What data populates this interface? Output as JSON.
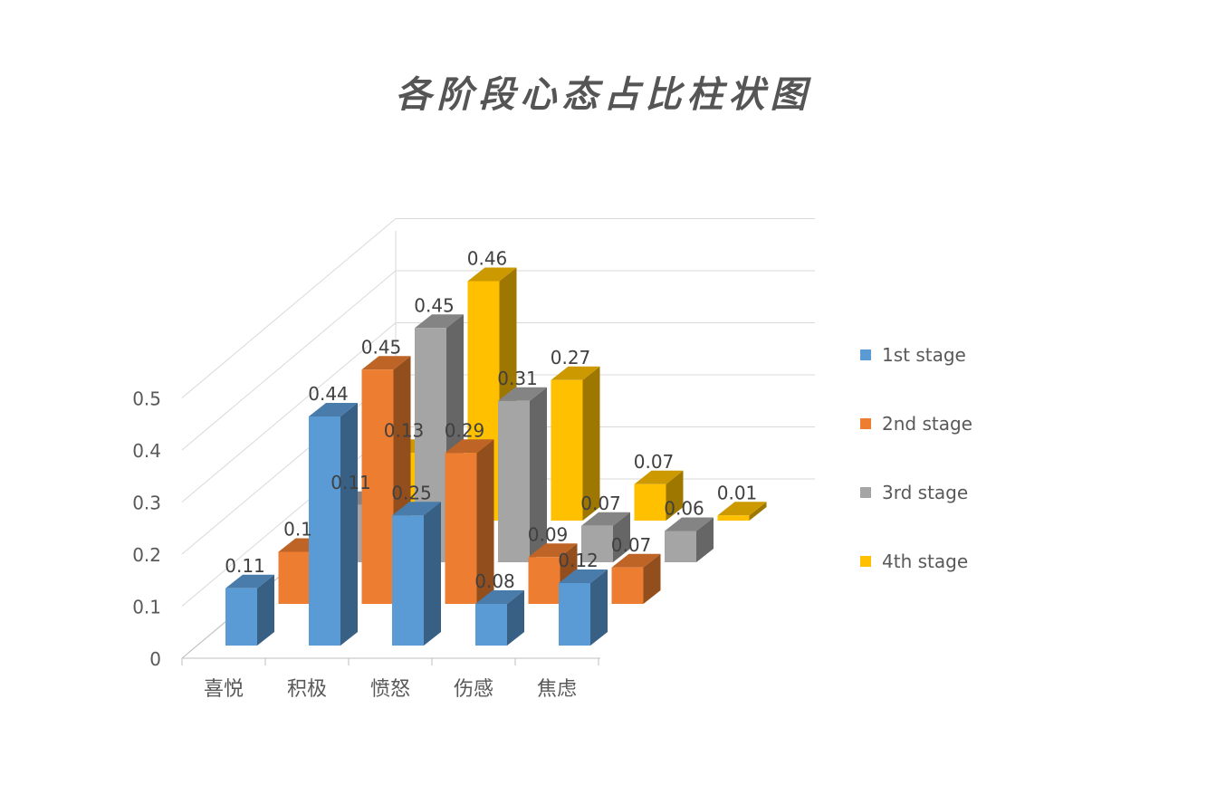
{
  "chart_data": {
    "type": "bar",
    "title": "各阶段心态占比柱状图",
    "categories": [
      "喜悦",
      "积极",
      "愤怒",
      "伤感",
      "焦虑"
    ],
    "series": [
      {
        "name": "1st stage",
        "color": "#5B9BD5",
        "values": [
          0.11,
          0.44,
          0.25,
          0.08,
          0.12
        ]
      },
      {
        "name": "2nd stage",
        "color": "#ED7D31",
        "values": [
          0.1,
          0.45,
          0.29,
          0.09,
          0.07
        ]
      },
      {
        "name": "3rd stage",
        "color": "#A5A5A5",
        "values": [
          0.11,
          0.45,
          0.31,
          0.07,
          0.06
        ]
      },
      {
        "name": "4th stage",
        "color": "#FFC000",
        "values": [
          0.13,
          0.46,
          0.27,
          0.07,
          0.01
        ]
      }
    ],
    "value_labels": [
      [
        "0.11",
        "0.44",
        "0.25",
        "0.08",
        "0.12"
      ],
      [
        "0.1",
        "0.45",
        "0.29",
        "0.09",
        "0.07"
      ],
      [
        "0.11",
        "0.45",
        "0.31",
        "0.07",
        "0.06"
      ],
      [
        "0.13",
        "0.46",
        "0.27",
        "0.07",
        "0.01"
      ]
    ],
    "y_ticks": [
      "0",
      "0.1",
      "0.2",
      "0.3",
      "0.4",
      "0.5"
    ],
    "ylim": [
      0,
      0.5
    ],
    "grid": true,
    "legend_position": "right",
    "chart_style": "3d-clustered-columns"
  }
}
